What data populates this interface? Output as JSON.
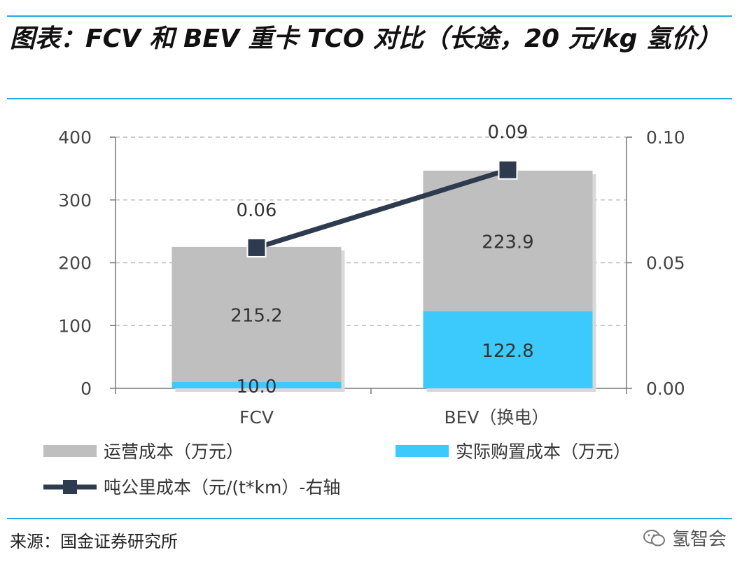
{
  "figure": {
    "title": "图表：FCV 和 BEV 重卡 TCO 对比（长途，20 元/kg 氢价）",
    "source": "来源：国金证券研究所",
    "watermark": "氢智会"
  },
  "colors": {
    "operating": "#bfbfbf",
    "purchase": "#3ccafc",
    "line": "#2e3b4e",
    "grid": "#bdbdbd",
    "rule": "#2aa7e0"
  },
  "chart_data": {
    "type": "bar",
    "stacked": true,
    "categories": [
      "FCV",
      "BEV（换电）"
    ],
    "series": [
      {
        "name": "实际购置成本（万元）",
        "values": [
          10.0,
          122.8
        ],
        "axis": "left",
        "kind": "bar"
      },
      {
        "name": "运营成本（万元）",
        "values": [
          215.2,
          223.9
        ],
        "axis": "left",
        "kind": "bar"
      },
      {
        "name": "吨公里成本（元/(t*km）-右轴",
        "values": [
          0.06,
          0.09
        ],
        "plot_values": [
          0.056,
          0.087
        ],
        "axis": "right",
        "kind": "line"
      }
    ],
    "data_labels": {
      "purchase": [
        "10.0",
        "122.8"
      ],
      "operating": [
        "215.2",
        "223.9"
      ],
      "line": [
        "0.06",
        "0.09"
      ]
    },
    "ylim": [
      0,
      400
    ],
    "yticks": [
      "0",
      "100",
      "200",
      "300",
      "400"
    ],
    "y2lim": [
      0,
      0.1
    ],
    "y2ticks": [
      "0.00",
      "0.05",
      "0.10"
    ],
    "grid": "dashed horizontal",
    "legend": {
      "position": "bottom",
      "items": [
        "运营成本（万元）",
        "实际购置成本（万元）",
        "吨公里成本（元/(t*km）-右轴"
      ]
    }
  }
}
